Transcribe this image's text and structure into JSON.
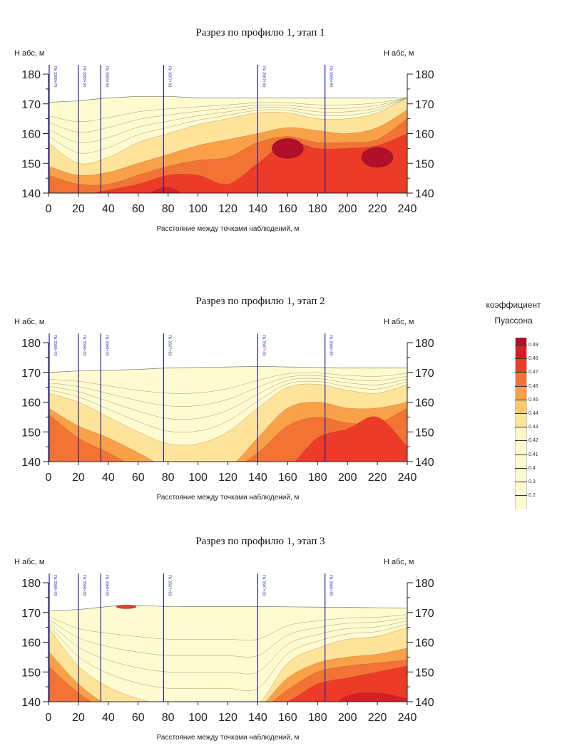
{
  "legend": {
    "title_line1": "коэффициент",
    "title_line2": "Пуассона",
    "items": [
      {
        "label": "0.49",
        "color": "#d41f26"
      },
      {
        "label": "0.48",
        "color": "#ec3b26"
      },
      {
        "label": "0.47",
        "color": "#f27334"
      },
      {
        "label": "0.46",
        "color": "#f9a148"
      },
      {
        "label": "0.45",
        "color": "#fcc96f"
      },
      {
        "label": "0.44",
        "color": "#fde49a"
      },
      {
        "label": "0.43",
        "color": "#fef6c4"
      },
      {
        "label": "0.42",
        "color": "#fffbd0"
      },
      {
        "label": "0.41",
        "color": "#fffbd0"
      },
      {
        "label": "0.4",
        "color": "#fffbd0"
      },
      {
        "label": "0.3",
        "color": "#fffbd0"
      },
      {
        "label": "0.2",
        "color": "#fffbd0"
      }
    ],
    "top_color": "#b0102a"
  },
  "chart_data": [
    {
      "type": "heatmap",
      "title": "Разрез по профилю 1, этап 1",
      "ylabel_left": "Н абс, м",
      "ylabel_right": "Н абс, м",
      "xlabel": "Расстояние между точками наблюдений, м",
      "xlim": [
        0,
        240
      ],
      "ylim": [
        140,
        180
      ],
      "xticks": [
        "0",
        "20",
        "40",
        "60",
        "80",
        "100",
        "120",
        "140",
        "160",
        "180",
        "200",
        "220",
        "240"
      ],
      "yticks": [
        "140",
        "150",
        "160",
        "170",
        "180"
      ],
      "pickets": [
        {
          "x": 0,
          "label": "Пк 3568+70"
        },
        {
          "x": 20,
          "label": "Пк 3568+50"
        },
        {
          "x": 35,
          "label": "Пк 3568+35"
        },
        {
          "x": 77,
          "label": "Пк 3567+93"
        },
        {
          "x": 140,
          "label": "Пк 3567+30"
        },
        {
          "x": 185,
          "label": "Пк 3566+85"
        }
      ],
      "surface": {
        "x": [
          0,
          20,
          40,
          60,
          80,
          100,
          140,
          200,
          230,
          240
        ],
        "h": [
          170.5,
          171,
          172,
          172.5,
          172.5,
          172,
          172,
          172,
          172,
          172
        ]
      },
      "x": [
        0,
        20,
        40,
        60,
        80,
        100,
        120,
        140,
        160,
        180,
        200,
        220,
        240
      ],
      "boundaries": [
        {
          "level": 0.44,
          "h": [
            157,
            150,
            152,
            157,
            160,
            163,
            165,
            167,
            167,
            165,
            165,
            167,
            172
          ]
        },
        {
          "level": 0.46,
          "h": [
            149,
            146,
            147,
            150,
            153,
            156,
            158,
            160,
            162,
            161,
            160,
            162,
            168
          ]
        },
        {
          "level": 0.47,
          "h": [
            146,
            143,
            143,
            146,
            149,
            151,
            152,
            157,
            159,
            157,
            157,
            158,
            165
          ]
        },
        {
          "level": 0.48,
          "h": [
            138,
            139,
            141,
            143,
            146,
            146,
            143,
            150,
            157,
            155,
            155,
            156,
            160
          ]
        },
        {
          "level": 0.49,
          "h": [
            130,
            132,
            135,
            138,
            142,
            136,
            130,
            130,
            130,
            130,
            130,
            130,
            130
          ]
        }
      ],
      "highs": [
        {
          "x": 160,
          "h": 155,
          "level": 0.49
        },
        {
          "x": 220,
          "h": 152,
          "level": 0.49
        }
      ]
    },
    {
      "type": "heatmap",
      "title": "Разрез по профилю 1, этап 2",
      "ylabel_left": "Н абс, м",
      "ylabel_right": "Н абс, м",
      "xlabel": "Расстояние между точками наблюдений, м",
      "xlim": [
        0,
        240
      ],
      "ylim": [
        140,
        180
      ],
      "xticks": [
        "0",
        "20",
        "40",
        "60",
        "80",
        "100",
        "120",
        "140",
        "160",
        "180",
        "200",
        "220",
        "240"
      ],
      "yticks": [
        "140",
        "150",
        "160",
        "170",
        "180"
      ],
      "pickets": [
        {
          "x": 0,
          "label": "Пк 3568+70"
        },
        {
          "x": 20,
          "label": "Пк 3568+50"
        },
        {
          "x": 35,
          "label": "Пк 3568+35"
        },
        {
          "x": 77,
          "label": "Пк 3567+93"
        },
        {
          "x": 140,
          "label": "Пк 3567+30"
        },
        {
          "x": 185,
          "label": "Пк 3566+85"
        }
      ],
      "surface": {
        "x": [
          0,
          20,
          60,
          80,
          140,
          200,
          240
        ],
        "h": [
          170,
          170.5,
          171,
          171.5,
          172,
          171.5,
          171.5
        ]
      },
      "x": [
        0,
        20,
        40,
        60,
        80,
        100,
        120,
        140,
        160,
        180,
        200,
        220,
        240
      ],
      "boundaries": [
        {
          "level": 0.44,
          "h": [
            163,
            160,
            155,
            150,
            146,
            146,
            150,
            158,
            165,
            166,
            164,
            163,
            166
          ]
        },
        {
          "level": 0.46,
          "h": [
            158,
            152,
            148,
            143,
            138,
            138,
            138,
            148,
            158,
            160,
            158,
            158,
            160
          ]
        },
        {
          "level": 0.47,
          "h": [
            156,
            148,
            143,
            138,
            137,
            137,
            137,
            143,
            152,
            155,
            153,
            153,
            158
          ]
        },
        {
          "level": 0.48,
          "h": [
            140,
            139,
            138,
            137,
            136,
            136,
            136,
            136,
            138,
            148,
            151,
            155,
            145
          ]
        },
        {
          "level": 0.49,
          "h": [
            130,
            130,
            130,
            130,
            130,
            130,
            130,
            130,
            130,
            130,
            130,
            130,
            130
          ]
        }
      ],
      "highs": []
    },
    {
      "type": "heatmap",
      "title": "Разрез по профилю 1, этап 3",
      "ylabel_left": "Н абс, м",
      "ylabel_right": "Н абс, м",
      "xlabel": "Расстояние между точками наблюдений, м",
      "xlim": [
        0,
        240
      ],
      "ylim": [
        140,
        180
      ],
      "xticks": [
        "0",
        "20",
        "40",
        "60",
        "80",
        "100",
        "120",
        "140",
        "160",
        "180",
        "200",
        "220",
        "240"
      ],
      "yticks": [
        "140",
        "150",
        "160",
        "170",
        "180"
      ],
      "pickets": [
        {
          "x": 0,
          "label": "Пк 3568+70"
        },
        {
          "x": 20,
          "label": "Пк 3568+50"
        },
        {
          "x": 35,
          "label": "Пк 3568+35"
        },
        {
          "x": 77,
          "label": "Пк 3567+93"
        },
        {
          "x": 140,
          "label": "Пк 3567+30"
        },
        {
          "x": 185,
          "label": "Пк 3566+85"
        }
      ],
      "surface": {
        "x": [
          0,
          20,
          50,
          80,
          140,
          240
        ],
        "h": [
          170.5,
          171,
          172.5,
          172,
          172,
          171.5
        ]
      },
      "x": [
        0,
        20,
        40,
        60,
        80,
        100,
        120,
        140,
        160,
        180,
        200,
        220,
        240
      ],
      "boundaries": [
        {
          "level": 0.44,
          "h": [
            165,
            152,
            145,
            141,
            139,
            139,
            139,
            139,
            153,
            158,
            161,
            162,
            165
          ]
        },
        {
          "level": 0.46,
          "h": [
            157,
            146,
            139,
            138,
            138,
            138,
            138,
            138,
            148,
            153,
            155,
            156,
            158
          ]
        },
        {
          "level": 0.47,
          "h": [
            152,
            143,
            137,
            137,
            137,
            137,
            137,
            137,
            144,
            150,
            152,
            153,
            154
          ]
        },
        {
          "level": 0.48,
          "h": [
            140,
            137,
            136,
            136,
            136,
            136,
            136,
            137,
            140,
            146,
            148,
            150,
            152
          ]
        },
        {
          "level": 0.49,
          "h": [
            130,
            130,
            130,
            130,
            130,
            130,
            130,
            130,
            130,
            135,
            142,
            143,
            141
          ]
        }
      ],
      "highs": [
        {
          "x": 52,
          "h": 172,
          "level": 0.48
        }
      ]
    }
  ]
}
